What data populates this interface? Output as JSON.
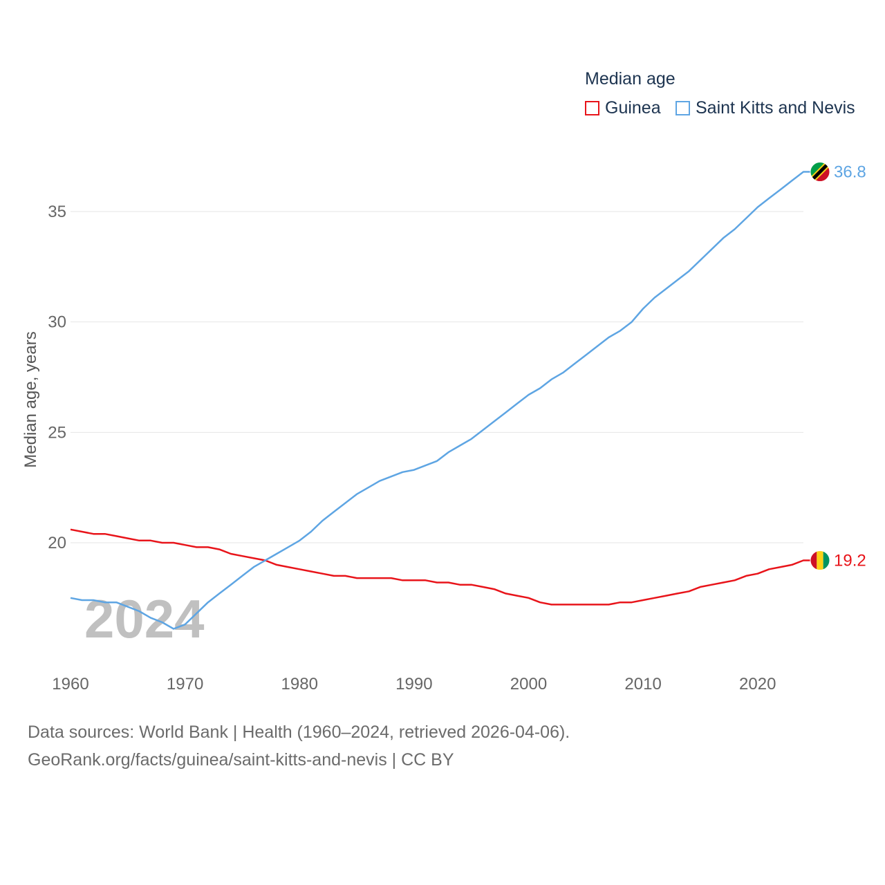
{
  "chart_data": {
    "type": "line",
    "legend_title": "Median age",
    "ylabel": "Median age, years",
    "xlabel": "",
    "xlim": [
      1960,
      2024
    ],
    "ylim": [
      15,
      38
    ],
    "x_ticks": [
      1960,
      1970,
      1980,
      1990,
      2000,
      2010,
      2020
    ],
    "y_ticks": [
      20,
      25,
      30,
      35
    ],
    "year_watermark": "2024",
    "legend_placement": "top-right",
    "x": [
      1960,
      1961,
      1962,
      1963,
      1964,
      1965,
      1966,
      1967,
      1968,
      1969,
      1970,
      1971,
      1972,
      1973,
      1974,
      1975,
      1976,
      1977,
      1978,
      1979,
      1980,
      1981,
      1982,
      1983,
      1984,
      1985,
      1986,
      1987,
      1988,
      1989,
      1990,
      1991,
      1992,
      1993,
      1994,
      1995,
      1996,
      1997,
      1998,
      1999,
      2000,
      2001,
      2002,
      2003,
      2004,
      2005,
      2006,
      2007,
      2008,
      2009,
      2010,
      2011,
      2012,
      2013,
      2014,
      2015,
      2016,
      2017,
      2018,
      2019,
      2020,
      2021,
      2022,
      2023,
      2024
    ],
    "series": [
      {
        "name": "Guinea",
        "color": "#e8141a",
        "end_label": "19.2",
        "flag": "guinea-flag-icon",
        "values": [
          20.6,
          20.5,
          20.4,
          20.4,
          20.3,
          20.2,
          20.1,
          20.1,
          20.0,
          20.0,
          19.9,
          19.8,
          19.8,
          19.7,
          19.5,
          19.4,
          19.3,
          19.2,
          19.0,
          18.9,
          18.8,
          18.7,
          18.6,
          18.5,
          18.5,
          18.4,
          18.4,
          18.4,
          18.4,
          18.3,
          18.3,
          18.3,
          18.2,
          18.2,
          18.1,
          18.1,
          18.0,
          17.9,
          17.7,
          17.6,
          17.5,
          17.3,
          17.2,
          17.2,
          17.2,
          17.2,
          17.2,
          17.2,
          17.3,
          17.3,
          17.4,
          17.5,
          17.6,
          17.7,
          17.8,
          18.0,
          18.1,
          18.2,
          18.3,
          18.5,
          18.6,
          18.8,
          18.9,
          19.0,
          19.2
        ]
      },
      {
        "name": "Saint Kitts and Nevis",
        "color": "#5ea5e3",
        "end_label": "36.8",
        "flag": "saint-kitts-and-nevis-flag-icon",
        "values": [
          17.5,
          17.4,
          17.4,
          17.3,
          17.3,
          17.1,
          16.9,
          16.6,
          16.4,
          16.1,
          16.3,
          16.8,
          17.3,
          17.7,
          18.1,
          18.5,
          18.9,
          19.2,
          19.5,
          19.8,
          20.1,
          20.5,
          21.0,
          21.4,
          21.8,
          22.2,
          22.5,
          22.8,
          23.0,
          23.2,
          23.3,
          23.5,
          23.7,
          24.1,
          24.4,
          24.7,
          25.1,
          25.5,
          25.9,
          26.3,
          26.7,
          27.0,
          27.4,
          27.7,
          28.1,
          28.5,
          28.9,
          29.3,
          29.6,
          30.0,
          30.6,
          31.1,
          31.5,
          31.9,
          32.3,
          32.8,
          33.3,
          33.8,
          34.2,
          34.7,
          35.2,
          35.6,
          36.0,
          36.4,
          36.8
        ]
      }
    ]
  },
  "footer": {
    "line1": "Data sources: World Bank | Health (1960–2024, retrieved 2026-04-06).",
    "line2": "GeoRank.org/facts/guinea/saint-kitts-and-nevis | CC BY"
  }
}
